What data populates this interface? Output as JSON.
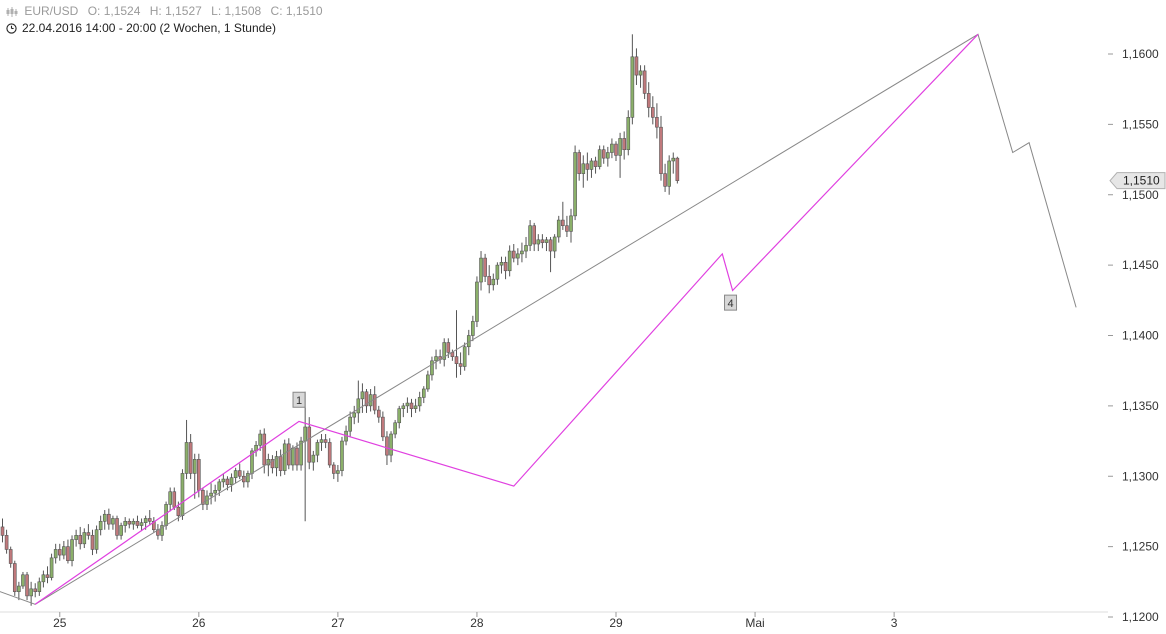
{
  "header": {
    "symbol": "EUR/USD",
    "open": "O: 1,1524",
    "high": "H: 1,1527",
    "low": "L: 1,1508",
    "close": "C: 1,1510",
    "period": "22.04.2016 14:00 - 20:00 (2 Wochen, 1 Stunde)"
  },
  "colors": {
    "up": "#8bb06a",
    "down": "#c0797c",
    "wick": "#555555",
    "trend_magenta": "#e040e0",
    "trend_gray": "#888888",
    "axis_text": "#333333"
  },
  "chart_data": {
    "type": "candlestick",
    "ylim": [
      1.12,
      1.161
    ],
    "y_ticks": [
      "1,1600",
      "1,1550",
      "1,1500",
      "1,1450",
      "1,1400",
      "1,1350",
      "1,1300",
      "1,1250",
      "1,1200"
    ],
    "y_tick_values": [
      1.16,
      1.155,
      1.15,
      1.145,
      1.14,
      1.135,
      1.13,
      1.125,
      1.12
    ],
    "x_ticks": [
      "25",
      "26",
      "27",
      "28",
      "29",
      "Mai",
      "3"
    ],
    "x_tick_hours": [
      14,
      48,
      82,
      116,
      150,
      184,
      218
    ],
    "last_price_label": "1,1510",
    "last_price": 1.151,
    "wave_labels": [
      {
        "text": "1",
        "hour": 72.5,
        "price": 1.1354
      },
      {
        "text": "4",
        "hour": 178,
        "price": 1.1423
      }
    ],
    "magenta_path": [
      [
        8,
        1.1209
      ],
      [
        72.5,
        1.1339
      ],
      [
        125,
        1.1293
      ],
      [
        176,
        1.1458
      ],
      [
        178.5,
        1.1432
      ],
      [
        238.5,
        1.1614
      ]
    ],
    "gray_path": [
      [
        -1.5,
        1.1219
      ],
      [
        8,
        1.1209
      ],
      [
        238.5,
        1.1614
      ],
      [
        247,
        1.153
      ],
      [
        251,
        1.1537
      ],
      [
        262.5,
        1.142
      ]
    ],
    "candles_hourly": [
      [
        1.1264,
        1.127,
        1.1253,
        1.1258
      ],
      [
        1.1258,
        1.1262,
        1.1245,
        1.1248
      ],
      [
        1.1248,
        1.125,
        1.1235,
        1.1238
      ],
      [
        1.1238,
        1.124,
        1.1215,
        1.1218
      ],
      [
        1.1218,
        1.1225,
        1.1212,
        1.1222
      ],
      [
        1.1222,
        1.1232,
        1.122,
        1.123
      ],
      [
        1.123,
        1.1232,
        1.1212,
        1.1215
      ],
      [
        1.1215,
        1.1225,
        1.1208,
        1.122
      ],
      [
        1.122,
        1.1224,
        1.1214,
        1.1218
      ],
      [
        1.1218,
        1.1228,
        1.1215,
        1.1225
      ],
      [
        1.1225,
        1.1233,
        1.1221,
        1.123
      ],
      [
        1.123,
        1.1236,
        1.1224,
        1.1228
      ],
      [
        1.1228,
        1.1245,
        1.1226,
        1.1242
      ],
      [
        1.1242,
        1.1252,
        1.1238,
        1.1248
      ],
      [
        1.1248,
        1.1252,
        1.124,
        1.1244
      ],
      [
        1.1244,
        1.1254,
        1.1241,
        1.125
      ],
      [
        1.125,
        1.1255,
        1.1238,
        1.124
      ],
      [
        1.124,
        1.1258,
        1.1236,
        1.1255
      ],
      [
        1.1255,
        1.1262,
        1.125,
        1.1258
      ],
      [
        1.1258,
        1.1264,
        1.1248,
        1.1252
      ],
      [
        1.1252,
        1.1263,
        1.1249,
        1.126
      ],
      [
        1.126,
        1.1266,
        1.1255,
        1.1258
      ],
      [
        1.1258,
        1.1262,
        1.1244,
        1.1248
      ],
      [
        1.1248,
        1.1265,
        1.1245,
        1.1262
      ],
      [
        1.1262,
        1.1272,
        1.1258,
        1.1268
      ],
      [
        1.1268,
        1.1276,
        1.1262,
        1.1273
      ],
      [
        1.1273,
        1.1277,
        1.1262,
        1.1266
      ],
      [
        1.1266,
        1.1272,
        1.1262,
        1.127
      ],
      [
        1.127,
        1.1272,
        1.1255,
        1.1258
      ],
      [
        1.1258,
        1.1267,
        1.1255,
        1.1265
      ],
      [
        1.1265,
        1.1271,
        1.126,
        1.1268
      ],
      [
        1.1268,
        1.127,
        1.1263,
        1.1266
      ],
      [
        1.1266,
        1.127,
        1.1262,
        1.1268
      ],
      [
        1.1268,
        1.1272,
        1.1263,
        1.1265
      ],
      [
        1.1265,
        1.127,
        1.1261,
        1.1267
      ],
      [
        1.1267,
        1.1272,
        1.1262,
        1.127
      ],
      [
        1.127,
        1.1276,
        1.1265,
        1.1268
      ],
      [
        1.1268,
        1.1271,
        1.126,
        1.1262
      ],
      [
        1.1262,
        1.1266,
        1.1255,
        1.1258
      ],
      [
        1.1258,
        1.1268,
        1.1254,
        1.1265
      ],
      [
        1.1265,
        1.1282,
        1.1262,
        1.128
      ],
      [
        1.128,
        1.1292,
        1.1275,
        1.1289
      ],
      [
        1.1289,
        1.1292,
        1.1276,
        1.1278
      ],
      [
        1.1278,
        1.1282,
        1.1268,
        1.1272
      ],
      [
        1.1272,
        1.1305,
        1.1269,
        1.1302
      ],
      [
        1.1302,
        1.134,
        1.1298,
        1.1324
      ],
      [
        1.1324,
        1.133,
        1.1298,
        1.1302
      ],
      [
        1.1302,
        1.1316,
        1.1284,
        1.1312
      ],
      [
        1.1312,
        1.1316,
        1.1285,
        1.129
      ],
      [
        1.129,
        1.1292,
        1.1276,
        1.128
      ],
      [
        1.128,
        1.129,
        1.1276,
        1.1286
      ],
      [
        1.1286,
        1.1295,
        1.128,
        1.1288
      ],
      [
        1.1288,
        1.1294,
        1.1282,
        1.129
      ],
      [
        1.129,
        1.1298,
        1.1286,
        1.1296
      ],
      [
        1.1296,
        1.1302,
        1.1292,
        1.1298
      ],
      [
        1.1298,
        1.13,
        1.129,
        1.1294
      ],
      [
        1.1294,
        1.1302,
        1.1289,
        1.1299
      ],
      [
        1.1299,
        1.1306,
        1.1295,
        1.1304
      ],
      [
        1.1304,
        1.1309,
        1.1298,
        1.13
      ],
      [
        1.13,
        1.1304,
        1.1292,
        1.1296
      ],
      [
        1.1296,
        1.1304,
        1.1292,
        1.1302
      ],
      [
        1.1302,
        1.132,
        1.1298,
        1.1318
      ],
      [
        1.1318,
        1.1325,
        1.1314,
        1.1322
      ],
      [
        1.1322,
        1.1333,
        1.1318,
        1.133
      ],
      [
        1.133,
        1.1334,
        1.1302,
        1.1308
      ],
      [
        1.1308,
        1.1316,
        1.13,
        1.1312
      ],
      [
        1.1312,
        1.1315,
        1.1302,
        1.1306
      ],
      [
        1.1306,
        1.1318,
        1.13,
        1.1314
      ],
      [
        1.1314,
        1.1319,
        1.13,
        1.1304
      ],
      [
        1.1304,
        1.1326,
        1.1301,
        1.1323
      ],
      [
        1.1323,
        1.1327,
        1.1305,
        1.1308
      ],
      [
        1.1308,
        1.1322,
        1.1304,
        1.132
      ],
      [
        1.132,
        1.1324,
        1.1304,
        1.1308
      ],
      [
        1.1308,
        1.1328,
        1.1304,
        1.1325
      ],
      [
        1.1325,
        1.136,
        1.1268,
        1.1335
      ],
      [
        1.1335,
        1.1342,
        1.1305,
        1.131
      ],
      [
        1.131,
        1.1318,
        1.1304,
        1.1315
      ],
      [
        1.1315,
        1.1326,
        1.131,
        1.1324
      ],
      [
        1.1324,
        1.133,
        1.1318,
        1.1326
      ],
      [
        1.1326,
        1.133,
        1.132,
        1.1324
      ],
      [
        1.1324,
        1.1327,
        1.1306,
        1.1308
      ],
      [
        1.1308,
        1.131,
        1.1298,
        1.1302
      ],
      [
        1.1302,
        1.1308,
        1.1296,
        1.1304
      ],
      [
        1.1304,
        1.1328,
        1.13,
        1.1325
      ],
      [
        1.1325,
        1.1336,
        1.1322,
        1.1332
      ],
      [
        1.1332,
        1.1346,
        1.1328,
        1.1342
      ],
      [
        1.1342,
        1.135,
        1.1337,
        1.1345
      ],
      [
        1.1345,
        1.1368,
        1.1338,
        1.1355
      ],
      [
        1.1355,
        1.1366,
        1.1345,
        1.136
      ],
      [
        1.136,
        1.1362,
        1.1345,
        1.135
      ],
      [
        1.135,
        1.1362,
        1.1346,
        1.1358
      ],
      [
        1.1358,
        1.1364,
        1.1344,
        1.1347
      ],
      [
        1.1347,
        1.135,
        1.1338,
        1.1342
      ],
      [
        1.1342,
        1.1346,
        1.1325,
        1.1328
      ],
      [
        1.1328,
        1.1332,
        1.1308,
        1.1315
      ],
      [
        1.1315,
        1.1332,
        1.131,
        1.133
      ],
      [
        1.133,
        1.134,
        1.1327,
        1.1338
      ],
      [
        1.1338,
        1.135,
        1.1334,
        1.1348
      ],
      [
        1.1348,
        1.1352,
        1.1342,
        1.135
      ],
      [
        1.135,
        1.1356,
        1.1345,
        1.1352
      ],
      [
        1.1352,
        1.1355,
        1.1342,
        1.1348
      ],
      [
        1.1348,
        1.1355,
        1.1345,
        1.135
      ],
      [
        1.135,
        1.136,
        1.1346,
        1.1356
      ],
      [
        1.1356,
        1.1364,
        1.1352,
        1.1362
      ],
      [
        1.1362,
        1.1375,
        1.136,
        1.1372
      ],
      [
        1.1372,
        1.1385,
        1.1368,
        1.1382
      ],
      [
        1.1382,
        1.139,
        1.1376,
        1.1385
      ],
      [
        1.1385,
        1.139,
        1.138,
        1.1383
      ],
      [
        1.1383,
        1.1398,
        1.1378,
        1.1395
      ],
      [
        1.1395,
        1.1398,
        1.1384,
        1.1388
      ],
      [
        1.1388,
        1.139,
        1.1382,
        1.1385
      ],
      [
        1.1385,
        1.1418,
        1.137,
        1.138
      ],
      [
        1.138,
        1.1388,
        1.1372,
        1.1378
      ],
      [
        1.1378,
        1.1395,
        1.1375,
        1.1392
      ],
      [
        1.1392,
        1.1404,
        1.1386,
        1.14
      ],
      [
        1.14,
        1.1414,
        1.1396,
        1.141
      ],
      [
        1.141,
        1.1442,
        1.1406,
        1.1438
      ],
      [
        1.1438,
        1.146,
        1.1432,
        1.1455
      ],
      [
        1.1455,
        1.1458,
        1.1438,
        1.1442
      ],
      [
        1.1442,
        1.145,
        1.143,
        1.1436
      ],
      [
        1.1436,
        1.1444,
        1.1432,
        1.144
      ],
      [
        1.144,
        1.1452,
        1.1436,
        1.145
      ],
      [
        1.145,
        1.1456,
        1.1444,
        1.1452
      ],
      [
        1.1452,
        1.1456,
        1.144,
        1.1446
      ],
      [
        1.1446,
        1.1464,
        1.1442,
        1.146
      ],
      [
        1.146,
        1.1465,
        1.1452,
        1.1455
      ],
      [
        1.1455,
        1.1462,
        1.145,
        1.1458
      ],
      [
        1.1458,
        1.1466,
        1.1452,
        1.146
      ],
      [
        1.146,
        1.147,
        1.1455,
        1.1464
      ],
      [
        1.1464,
        1.1482,
        1.146,
        1.1478
      ],
      [
        1.1478,
        1.148,
        1.146,
        1.1465
      ],
      [
        1.1465,
        1.1472,
        1.146,
        1.1468
      ],
      [
        1.1468,
        1.1472,
        1.1462,
        1.1466
      ],
      [
        1.1466,
        1.147,
        1.146,
        1.1468
      ],
      [
        1.1468,
        1.147,
        1.1445,
        1.146
      ],
      [
        1.146,
        1.1472,
        1.1455,
        1.147
      ],
      [
        1.147,
        1.1485,
        1.1466,
        1.1482
      ],
      [
        1.1482,
        1.1495,
        1.1475,
        1.1478
      ],
      [
        1.1478,
        1.1485,
        1.147,
        1.1474
      ],
      [
        1.1474,
        1.149,
        1.1466,
        1.1485
      ],
      [
        1.1485,
        1.1535,
        1.1482,
        1.153
      ],
      [
        1.153,
        1.1532,
        1.151,
        1.1515
      ],
      [
        1.1515,
        1.1528,
        1.1505,
        1.1522
      ],
      [
        1.1522,
        1.153,
        1.151,
        1.1518
      ],
      [
        1.1518,
        1.1526,
        1.1512,
        1.1524
      ],
      [
        1.1524,
        1.1527,
        1.1515,
        1.152
      ],
      [
        1.152,
        1.1535,
        1.1518,
        1.1532
      ],
      [
        1.1532,
        1.1535,
        1.1522,
        1.1526
      ],
      [
        1.1526,
        1.1534,
        1.152,
        1.153
      ],
      [
        1.153,
        1.154,
        1.1526,
        1.1536
      ],
      [
        1.1536,
        1.1538,
        1.1524,
        1.1528
      ],
      [
        1.1528,
        1.1544,
        1.1512,
        1.154
      ],
      [
        1.154,
        1.1545,
        1.1525,
        1.1532
      ],
      [
        1.1532,
        1.156,
        1.1528,
        1.1555
      ],
      [
        1.1555,
        1.1614,
        1.155,
        1.1598
      ],
      [
        1.1598,
        1.1604,
        1.1578,
        1.1585
      ],
      [
        1.1585,
        1.1592,
        1.1576,
        1.1588
      ],
      [
        1.1588,
        1.1592,
        1.1568,
        1.1572
      ],
      [
        1.1572,
        1.158,
        1.1555,
        1.1562
      ],
      [
        1.1562,
        1.157,
        1.155,
        1.1555
      ],
      [
        1.1555,
        1.1565,
        1.154,
        1.1548
      ],
      [
        1.1548,
        1.1556,
        1.151,
        1.1515
      ],
      [
        1.1515,
        1.1522,
        1.1502,
        1.1506
      ],
      [
        1.1506,
        1.1528,
        1.15,
        1.1524
      ],
      [
        1.1524,
        1.153,
        1.1515,
        1.1526
      ],
      [
        1.1526,
        1.1527,
        1.1508,
        1.151
      ]
    ]
  }
}
